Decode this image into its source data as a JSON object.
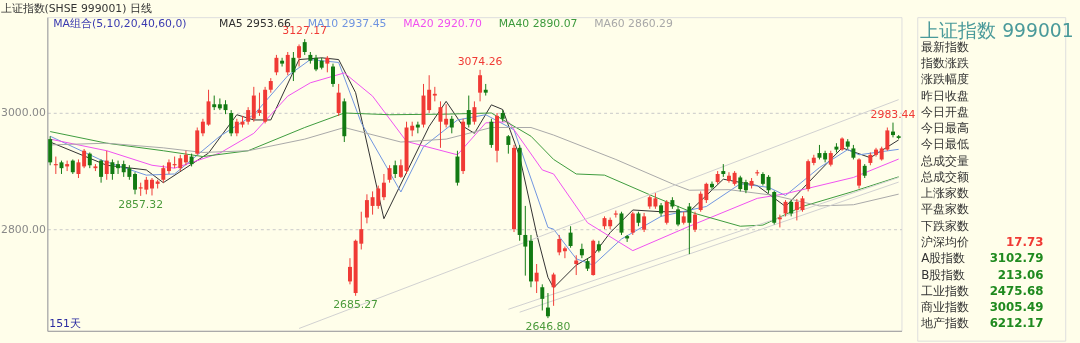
{
  "chart_data": [
    {
      "type": "candlestick",
      "title": "上证指数(SHSE 999001)  日线",
      "legend_title": "MA组合(5,10,20,40,60,0)",
      "grid": "y",
      "tick_labels": "y",
      "ylim": [
        2625,
        3165
      ],
      "yticks": [
        {
          "value": 2800,
          "label": "2800.00"
        },
        {
          "value": 3000,
          "label": "3000.00"
        }
      ],
      "categories": [
        null,
        null,
        null,
        null,
        null,
        null,
        null,
        null,
        null,
        null,
        null,
        null,
        null,
        null,
        null,
        null,
        null,
        null,
        null,
        null,
        null,
        null,
        null,
        null,
        null,
        null,
        null,
        null,
        null,
        null,
        null,
        null,
        null,
        null,
        null,
        null,
        null,
        null,
        null,
        null,
        null,
        null,
        null,
        null,
        null,
        null,
        null,
        null,
        null,
        null,
        null,
        null,
        null,
        null,
        null,
        null,
        null,
        null,
        null,
        null,
        null,
        null,
        null,
        null,
        null,
        null,
        null,
        null,
        null,
        null,
        null,
        null,
        null,
        null,
        null,
        null,
        null,
        null,
        null,
        null,
        null,
        null,
        null,
        null,
        null,
        null,
        null,
        null,
        null,
        null,
        null,
        null,
        null,
        null,
        null,
        null,
        null,
        null,
        null,
        null,
        null,
        null,
        null,
        null,
        null,
        null,
        null,
        null,
        null,
        null,
        null,
        null,
        null,
        null,
        null,
        null,
        null,
        null,
        null,
        null,
        null,
        null,
        null,
        null,
        null,
        null,
        null,
        null,
        null,
        null,
        null,
        null,
        null,
        null,
        null,
        null,
        null,
        null,
        null,
        null,
        null,
        null,
        null,
        null,
        null,
        null,
        null,
        null,
        null,
        null,
        null
      ],
      "ohlc": [
        [
          2955,
          2960,
          2910,
          2915
        ],
        [
          2910,
          2925,
          2895,
          2912
        ],
        [
          2915,
          2918,
          2895,
          2905
        ],
        [
          2908,
          2918,
          2900,
          2912
        ],
        [
          2918,
          2920,
          2895,
          2898
        ],
        [
          2895,
          2920,
          2888,
          2915
        ],
        [
          2908,
          2938,
          2905,
          2935
        ],
        [
          2930,
          2932,
          2905,
          2910
        ],
        [
          2905,
          2912,
          2900,
          2908
        ],
        [
          2918,
          2920,
          2880,
          2890
        ],
        [
          2895,
          2935,
          2885,
          2918
        ],
        [
          2915,
          2920,
          2885,
          2895
        ],
        [
          2912,
          2918,
          2895,
          2905
        ],
        [
          2912,
          2918,
          2890,
          2898
        ],
        [
          2905,
          2910,
          2885,
          2890
        ],
        [
          2895,
          2898,
          2860,
          2868
        ],
        [
          2870,
          2880,
          2857.32,
          2872
        ],
        [
          2868,
          2890,
          2860,
          2885
        ],
        [
          2870,
          2888,
          2858,
          2885
        ],
        [
          2878,
          2885,
          2870,
          2882
        ],
        [
          2885,
          2910,
          2880,
          2905
        ],
        [
          2900,
          2920,
          2895,
          2915
        ],
        [
          2910,
          2925,
          2905,
          2912
        ],
        [
          2905,
          2928,
          2900,
          2922
        ],
        [
          2915,
          2935,
          2910,
          2928
        ],
        [
          2925,
          2930,
          2908,
          2912
        ],
        [
          2930,
          2975,
          2928,
          2970
        ],
        [
          2965,
          2990,
          2960,
          2985
        ],
        [
          2980,
          3040,
          2978,
          3020
        ],
        [
          3015,
          3030,
          3005,
          3010
        ],
        [
          3015,
          3025,
          3005,
          3008
        ],
        [
          3015,
          3022,
          2998,
          3005
        ],
        [
          3000,
          3005,
          2960,
          2965
        ],
        [
          2965,
          2990,
          2960,
          2985
        ],
        [
          2980,
          2995,
          2975,
          2985
        ],
        [
          2985,
          3010,
          2980,
          3005
        ],
        [
          2990,
          3045,
          2985,
          3030
        ],
        [
          3000,
          3035,
          2995,
          3005
        ],
        [
          2985,
          3045,
          2982,
          3040
        ],
        [
          3040,
          3060,
          3035,
          3055
        ],
        [
          3070,
          3100,
          3065,
          3095
        ],
        [
          3090,
          3095,
          3080,
          3085
        ],
        [
          3070,
          3105,
          3065,
          3100
        ],
        [
          3095,
          3105,
          3055,
          3070
        ],
        [
          3095,
          3118,
          3080,
          3115
        ],
        [
          3122,
          3127.17,
          3100,
          3105
        ],
        [
          3100,
          3105,
          3085,
          3090
        ],
        [
          3095,
          3100,
          3072,
          3075
        ],
        [
          3090,
          3095,
          3075,
          3078
        ],
        [
          3085,
          3098,
          3070,
          3095
        ],
        [
          3080,
          3085,
          3045,
          3050
        ],
        [
          3000,
          3050,
          2995,
          3035
        ],
        [
          3020,
          3025,
          2950,
          2960
        ],
        [
          2710,
          2750,
          2705,
          2735
        ],
        [
          2690,
          2782,
          2685.27,
          2780
        ],
        [
          2775,
          2830,
          2765,
          2800
        ],
        [
          2820,
          2860,
          2810,
          2850
        ],
        [
          2840,
          2865,
          2825,
          2855
        ],
        [
          2840,
          2875,
          2835,
          2870
        ],
        [
          2855,
          2895,
          2850,
          2880
        ],
        [
          2885,
          2910,
          2880,
          2905
        ],
        [
          2910,
          2918,
          2888,
          2895
        ],
        [
          2890,
          2920,
          2888,
          2910
        ],
        [
          2900,
          2985,
          2895,
          2975
        ],
        [
          2970,
          2985,
          2960,
          2978
        ],
        [
          2980,
          2985,
          2965,
          2975
        ],
        [
          2980,
          3050,
          2975,
          3030
        ],
        [
          3005,
          3065,
          3000,
          3040
        ],
        [
          3030,
          3045,
          3020,
          3033
        ],
        [
          2985,
          3020,
          2940,
          3010
        ],
        [
          2980,
          3015,
          2975,
          2990
        ],
        [
          2990,
          2995,
          2965,
          2975
        ],
        [
          2925,
          2935,
          2875,
          2880
        ],
        [
          2900,
          2990,
          2895,
          2985
        ],
        [
          3005,
          3030,
          2975,
          2980
        ],
        [
          2985,
          3020,
          2980,
          3010
        ],
        [
          3035,
          3074.26,
          3020,
          3065
        ],
        [
          3040,
          3050,
          3030,
          3035
        ],
        [
          2985,
          2990,
          2940,
          2945
        ],
        [
          2935,
          3000,
          2915,
          2995
        ],
        [
          3000,
          3005,
          2985,
          2990
        ],
        [
          2960,
          2962,
          2930,
          2945
        ],
        [
          2800,
          2945,
          2795,
          2940
        ],
        [
          2940,
          2945,
          2780,
          2790
        ],
        [
          2790,
          2840,
          2720,
          2770
        ],
        [
          2780,
          2790,
          2700,
          2710
        ],
        [
          2710,
          2740,
          2690,
          2725
        ],
        [
          2700,
          2705,
          2660,
          2680
        ],
        [
          2665,
          2690,
          2646.8,
          2650
        ],
        [
          2700,
          2725,
          2668,
          2722
        ],
        [
          2760,
          2790,
          2755,
          2783
        ],
        [
          2762,
          2770,
          2750,
          2767
        ],
        [
          2794,
          2805,
          2768,
          2771
        ],
        [
          2740,
          2755,
          2721,
          2746
        ],
        [
          2766,
          2775,
          2750,
          2755
        ],
        [
          2745,
          2750,
          2728,
          2732
        ],
        [
          2721,
          2782,
          2720,
          2780
        ],
        [
          2774,
          2780,
          2760,
          2763
        ],
        [
          2805,
          2822,
          2800,
          2819
        ],
        [
          2805,
          2820,
          2800,
          2816
        ],
        [
          2825,
          2832,
          2820,
          2827
        ],
        [
          2827,
          2830,
          2790,
          2794
        ],
        [
          2788,
          2790,
          2778,
          2784
        ],
        [
          2794,
          2830,
          2790,
          2827
        ],
        [
          2827,
          2830,
          2805,
          2811
        ],
        [
          2799,
          2828,
          2795,
          2822
        ],
        [
          2839,
          2858,
          2835,
          2855
        ],
        [
          2839,
          2862,
          2835,
          2853
        ],
        [
          2841,
          2845,
          2822,
          2827
        ],
        [
          2811,
          2850,
          2808,
          2847
        ],
        [
          2850,
          2855,
          2835,
          2839
        ],
        [
          2834,
          2840,
          2805,
          2808
        ],
        [
          2811,
          2830,
          2808,
          2822
        ],
        [
          2839,
          2845,
          2757,
          2811
        ],
        [
          2799,
          2830,
          2795,
          2825
        ],
        [
          2833,
          2865,
          2830,
          2861
        ],
        [
          2850,
          2880,
          2845,
          2878
        ],
        [
          2878,
          2882,
          2868,
          2872
        ],
        [
          2881,
          2900,
          2878,
          2895
        ],
        [
          2900,
          2912,
          2890,
          2895
        ],
        [
          2883,
          2898,
          2880,
          2892
        ],
        [
          2878,
          2900,
          2875,
          2897
        ],
        [
          2889,
          2892,
          2865,
          2869
        ],
        [
          2881,
          2885,
          2862,
          2867
        ],
        [
          2875,
          2888,
          2870,
          2883
        ],
        [
          2896,
          2902,
          2892,
          2898
        ],
        [
          2895,
          2898,
          2875,
          2878
        ],
        [
          2890,
          2893,
          2862,
          2867
        ],
        [
          2864,
          2866,
          2808,
          2811
        ],
        [
          2817,
          2825,
          2803,
          2820
        ],
        [
          2827,
          2850,
          2822,
          2847
        ],
        [
          2847,
          2850,
          2822,
          2827
        ],
        [
          2833,
          2852,
          2815,
          2847
        ],
        [
          2833,
          2857,
          2830,
          2853
        ],
        [
          2869,
          2920,
          2865,
          2917
        ],
        [
          2914,
          2928,
          2910,
          2923
        ],
        [
          2931,
          2945,
          2920,
          2923
        ],
        [
          2931,
          2935,
          2915,
          2920
        ],
        [
          2911,
          2935,
          2908,
          2931
        ],
        [
          2942,
          2948,
          2932,
          2937
        ],
        [
          2937,
          2958,
          2935,
          2956
        ],
        [
          2951,
          2955,
          2938,
          2942
        ],
        [
          2939,
          2945,
          2920,
          2923
        ],
        [
          2875,
          2922,
          2870,
          2920
        ],
        [
          2909,
          2912,
          2888,
          2892
        ],
        [
          2914,
          2932,
          2910,
          2928
        ],
        [
          2928,
          2940,
          2925,
          2937
        ],
        [
          2920,
          2942,
          2918,
          2939
        ],
        [
          2937,
          2975,
          2935,
          2970
        ],
        [
          2968,
          2983.44,
          2958,
          2962
        ],
        [
          2960,
          2962,
          2955,
          2957
        ]
      ],
      "series": [
        {
          "name": "MA5 2953.66",
          "type": "line",
          "color": "#303030",
          "values": [
            2950,
            null,
            null,
            null,
            null,
            null,
            null,
            null,
            null,
            null,
            2910,
            null,
            null,
            null,
            null,
            null,
            null,
            2902,
            null,
            null,
            2880,
            null,
            null,
            null,
            null,
            null,
            null,
            null,
            2931,
            null,
            null,
            null,
            null,
            2997,
            null,
            null,
            2988,
            null,
            null,
            2988,
            null,
            null,
            null,
            null,
            3092,
            null,
            null,
            null,
            3095,
            null,
            null,
            3092,
            null,
            null,
            3035,
            null,
            null,
            null,
            null,
            2818,
            null,
            null,
            null,
            null,
            null,
            null,
            null,
            2977,
            null,
            null,
            3020,
            null,
            null,
            2977,
            null,
            2965,
            null,
            null,
            3014,
            null,
            3006,
            null,
            null,
            2925,
            null,
            null,
            2792,
            null,
            2717,
            2699,
            null,
            null,
            null,
            2738,
            null,
            null,
            2755,
            null,
            null,
            2794,
            null,
            null,
            null,
            2833,
            null,
            null,
            null,
            null,
            2830,
            null,
            null,
            null,
            null,
            2830,
            null,
            null,
            null,
            null,
            null,
            2886,
            null,
            null,
            null,
            null,
            null,
            2875,
            null,
            null,
            null,
            null,
            2839,
            null,
            null,
            null,
            null,
            null,
            2900,
            null,
            null,
            null,
            2940,
            null,
            null,
            null,
            null,
            2923,
            null,
            null,
            null,
            null,
            2953.66
          ]
        },
        {
          "name": "MA10 2937.45",
          "type": "line",
          "color": "#6f94e0",
          "values": [
            2960,
            null,
            null,
            null,
            null,
            null,
            null,
            null,
            null,
            2919,
            null,
            null,
            null,
            null,
            null,
            null,
            null,
            2893,
            null,
            null,
            null,
            null,
            2895,
            null,
            null,
            null,
            null,
            null,
            null,
            null,
            2960,
            null,
            null,
            null,
            null,
            null,
            2997,
            null,
            null,
            null,
            null,
            null,
            3064,
            null,
            null,
            null,
            3092,
            null,
            null,
            null,
            null,
            3087,
            null,
            null,
            null,
            2983,
            null,
            null,
            null,
            null,
            null,
            null,
            2864,
            null,
            null,
            null,
            2942,
            null,
            null,
            null,
            null,
            null,
            2988,
            null,
            null,
            null,
            null,
            2997,
            null,
            null,
            null,
            null,
            2971,
            null,
            null,
            null,
            null,
            null,
            2803,
            2800,
            null,
            null,
            null,
            2749,
            null,
            null,
            2738,
            null,
            null,
            null,
            null,
            2783,
            null,
            null,
            null,
            null,
            null,
            null,
            2822,
            null,
            null,
            null,
            null,
            null,
            null,
            null,
            2839,
            null,
            null,
            null,
            null,
            null,
            2878,
            null,
            null,
            null,
            null,
            2872,
            null,
            null,
            2858,
            null,
            null,
            null,
            null,
            null,
            2906,
            null,
            null,
            null,
            null,
            2937,
            null,
            2928,
            null,
            null,
            null,
            null,
            null,
            null,
            2937.45
          ]
        },
        {
          "name": "MA20 2920.70",
          "type": "line",
          "color": "#f050f0",
          "values": [
            2955,
            null,
            null,
            null,
            null,
            null,
            null,
            null,
            null,
            null,
            2935,
            null,
            null,
            null,
            null,
            null,
            null,
            null,
            2910,
            null,
            null,
            null,
            2905,
            null,
            null,
            null,
            null,
            null,
            null,
            null,
            2931,
            null,
            null,
            null,
            null,
            null,
            2965,
            null,
            null,
            null,
            null,
            null,
            3029,
            null,
            null,
            null,
            3052,
            null,
            null,
            null,
            null,
            null,
            3069,
            null,
            null,
            null,
            null,
            3029,
            null,
            null,
            null,
            null,
            null,
            2951,
            null,
            null,
            null,
            null,
            null,
            null,
            null,
            null,
            2928,
            null,
            null,
            null,
            null,
            2983,
            null,
            null,
            null,
            2985,
            null,
            null,
            null,
            null,
            null,
            2902,
            null,
            2895,
            null,
            null,
            null,
            null,
            null,
            2811,
            null,
            null,
            null,
            null,
            null,
            null,
            null,
            2763,
            null,
            null,
            null,
            null,
            null,
            null,
            null,
            null,
            null,
            2805,
            null,
            null,
            null,
            null,
            null,
            null,
            null,
            null,
            null,
            null,
            null,
            2853,
            null,
            null,
            null,
            null,
            2861,
            null,
            null,
            null,
            null,
            null,
            null,
            null,
            null,
            null,
            null,
            null,
            2889,
            null,
            null,
            null,
            null,
            null,
            null,
            null,
            2920.7
          ]
        },
        {
          "name": "MA40 2890.07",
          "type": "line",
          "color": "#3c9a3c",
          "values": [
            2968,
            null,
            null,
            null,
            null,
            null,
            null,
            null,
            null,
            null,
            2948,
            null,
            null,
            null,
            null,
            null,
            null,
            null,
            null,
            null,
            2935,
            null,
            null,
            null,
            null,
            null,
            null,
            2925,
            null,
            null,
            null,
            null,
            null,
            null,
            null,
            2935,
            null,
            null,
            null,
            null,
            null,
            null,
            null,
            null,
            null,
            2975,
            null,
            null,
            null,
            null,
            null,
            null,
            3000,
            null,
            null,
            null,
            null,
            null,
            null,
            null,
            2997,
            null,
            null,
            null,
            null,
            null,
            null,
            null,
            null,
            null,
            2998,
            null,
            null,
            null,
            null,
            null,
            null,
            null,
            3000,
            null,
            null,
            null,
            null,
            null,
            null,
            2960,
            null,
            null,
            null,
            2920,
            null,
            null,
            null,
            2895,
            null,
            null,
            null,
            null,
            2893,
            null,
            null,
            null,
            null,
            null,
            null,
            null,
            null,
            2855,
            null,
            null,
            null,
            null,
            null,
            null,
            2827,
            null,
            null,
            null,
            null,
            null,
            null,
            null,
            2805,
            null,
            null,
            null,
            2807,
            null,
            null,
            null,
            null,
            null,
            null,
            2839,
            null,
            null,
            null,
            null,
            null,
            null,
            null,
            null,
            2865,
            null,
            null,
            null,
            null,
            null,
            null,
            null,
            2890.07
          ]
        },
        {
          "name": "MA60 2860.29",
          "type": "line",
          "color": "#a8a8a8",
          "values": [
            2945,
            null,
            null,
            null,
            null,
            null,
            null,
            null,
            null,
            null,
            2948,
            null,
            null,
            null,
            null,
            null,
            null,
            null,
            null,
            null,
            2940,
            null,
            null,
            null,
            null,
            null,
            null,
            2932,
            null,
            null,
            null,
            null,
            null,
            null,
            null,
            2935,
            null,
            null,
            null,
            null,
            null,
            null,
            null,
            null,
            null,
            2955,
            null,
            null,
            null,
            null,
            null,
            null,
            2975,
            null,
            null,
            null,
            2965,
            null,
            null,
            null,
            null,
            null,
            2950,
            null,
            null,
            null,
            null,
            null,
            null,
            null,
            2955,
            null,
            null,
            null,
            null,
            null,
            null,
            null,
            2975,
            null,
            null,
            null,
            null,
            null,
            null,
            2975,
            null,
            null,
            null,
            2962,
            null,
            null,
            null,
            null,
            null,
            null,
            null,
            null,
            null,
            null,
            2920,
            null,
            null,
            null,
            null,
            null,
            null,
            null,
            null,
            null,
            2878,
            null,
            null,
            2867,
            null,
            null,
            null,
            null,
            null,
            null,
            2868,
            null,
            null,
            null,
            null,
            null,
            null,
            null,
            2858,
            null,
            null,
            null,
            null,
            null,
            null,
            null,
            2840,
            null,
            null,
            null,
            null,
            null,
            2842,
            null,
            null,
            null,
            null,
            null,
            null,
            null,
            2860.29
          ]
        },
        {
          "type": "line",
          "color": "#d0d0d0",
          "values": [
            null,
            null,
            null,
            null,
            null,
            null,
            null,
            null,
            null,
            null,
            null,
            null,
            null,
            null,
            null,
            null,
            null,
            null,
            null,
            null,
            null,
            null,
            null,
            null,
            null,
            null,
            null,
            null,
            null,
            null,
            null,
            null,
            null,
            null,
            null,
            null,
            null,
            null,
            null,
            null,
            null,
            null,
            null,
            null,
            2629,
            null,
            null,
            null,
            null,
            null,
            null,
            null,
            null,
            null,
            null,
            null,
            null,
            null,
            null,
            null,
            null,
            null,
            null,
            null,
            null,
            null,
            null,
            null,
            null,
            null,
            null,
            null,
            null,
            null,
            null,
            null,
            null,
            null,
            null,
            null,
            null,
            null,
            null,
            null,
            null,
            null,
            null,
            null,
            null,
            null,
            null,
            null,
            null,
            null,
            null,
            null,
            null,
            null,
            null,
            null,
            null,
            null,
            null,
            null,
            null,
            null,
            null,
            null,
            null,
            null,
            null,
            null,
            null,
            null,
            null,
            null,
            null,
            null,
            null,
            null,
            null,
            null,
            null,
            null,
            null,
            null,
            null,
            null,
            null,
            null,
            null,
            null,
            null,
            null,
            null,
            null,
            null,
            null,
            null,
            null,
            null,
            null,
            null,
            null,
            null,
            null,
            null,
            null,
            null,
            null,
            3023
          ]
        },
        {
          "type": "line",
          "color": "#d0d0d0",
          "values": [
            null,
            null,
            null,
            null,
            null,
            null,
            null,
            null,
            null,
            null,
            null,
            null,
            null,
            null,
            null,
            null,
            null,
            null,
            null,
            null,
            null,
            null,
            null,
            null,
            null,
            null,
            null,
            null,
            null,
            null,
            null,
            null,
            null,
            null,
            null,
            null,
            null,
            null,
            null,
            null,
            null,
            null,
            null,
            null,
            null,
            null,
            null,
            null,
            null,
            null,
            null,
            null,
            null,
            null,
            null,
            null,
            null,
            null,
            null,
            null,
            null,
            null,
            null,
            null,
            null,
            null,
            null,
            null,
            null,
            null,
            null,
            null,
            null,
            null,
            null,
            null,
            null,
            null,
            null,
            null,
            null,
            2662,
            null,
            null,
            null,
            null,
            null,
            null,
            null,
            null,
            null,
            null,
            null,
            null,
            null,
            null,
            null,
            null,
            null,
            null,
            null,
            null,
            null,
            null,
            null,
            null,
            null,
            null,
            null,
            null,
            null,
            null,
            null,
            null,
            null,
            null,
            null,
            null,
            null,
            null,
            null,
            null,
            null,
            null,
            null,
            null,
            null,
            null,
            null,
            null,
            null,
            null,
            null,
            null,
            null,
            null,
            null,
            null,
            null,
            null,
            null,
            null,
            null,
            null,
            null,
            null,
            null,
            null,
            null,
            null,
            2889
          ]
        },
        {
          "type": "line",
          "color": "#d0d0d0",
          "values": [
            null,
            null,
            null,
            null,
            null,
            null,
            null,
            null,
            null,
            null,
            null,
            null,
            null,
            null,
            null,
            null,
            null,
            null,
            null,
            null,
            null,
            null,
            null,
            null,
            null,
            null,
            null,
            null,
            null,
            null,
            null,
            null,
            null,
            null,
            null,
            null,
            null,
            null,
            null,
            null,
            null,
            null,
            null,
            null,
            null,
            null,
            null,
            null,
            null,
            null,
            null,
            null,
            null,
            null,
            null,
            null,
            null,
            null,
            null,
            null,
            null,
            null,
            null,
            null,
            null,
            null,
            null,
            null,
            null,
            null,
            null,
            null,
            null,
            null,
            null,
            null,
            null,
            null,
            null,
            null,
            null,
            null,
            null,
            2657,
            null,
            null,
            null,
            null,
            null,
            null,
            null,
            null,
            null,
            null,
            null,
            null,
            null,
            null,
            null,
            null,
            null,
            null,
            null,
            null,
            null,
            null,
            null,
            null,
            null,
            null,
            null,
            null,
            null,
            null,
            null,
            null,
            null,
            null,
            null,
            null,
            null,
            null,
            null,
            null,
            null,
            null,
            null,
            null,
            null,
            null,
            null,
            null,
            null,
            null,
            null,
            null,
            null,
            null,
            null,
            null,
            null,
            null,
            null,
            null,
            null,
            null,
            null,
            null,
            null,
            null,
            2881
          ]
        }
      ],
      "annotations": [
        "3127.17",
        "2857.32",
        "2685.27",
        "3074.26",
        "2646.80",
        "2983.44",
        "151天"
      ]
    },
    {
      "type": "other",
      "title": "上证指数  999001",
      "annotations": [
        "最新指数",
        "指数涨跌",
        "涨跌幅度",
        "昨日收盘",
        "今日开盘",
        "今日最高",
        "今日最低",
        "总成交量",
        "总成交额",
        "上涨家数",
        "平盘家数",
        "下跌家数",
        "沪深均价",
        "17.73",
        "A股指数",
        "3102.79",
        "B股指数",
        "213.06",
        "工业指数",
        "2475.68",
        "商业指数",
        "3005.49",
        "地产指数",
        "6212.17"
      ]
    }
  ]
}
